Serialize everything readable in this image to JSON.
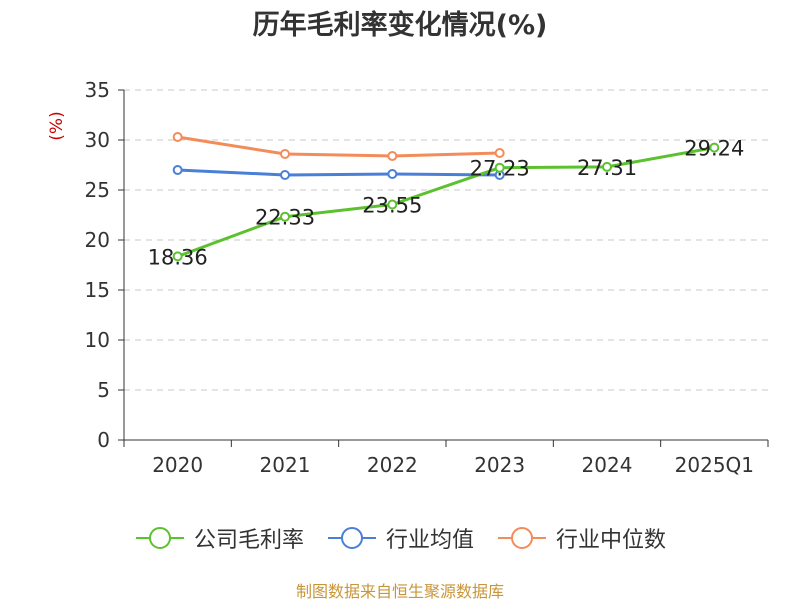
{
  "chart_data": {
    "type": "line",
    "title": "历年毛利率变化情况(%)",
    "ylabel": "(%)",
    "xlabel": "",
    "categories": [
      "2020",
      "2021",
      "2022",
      "2023",
      "2024",
      "2025Q1"
    ],
    "ylim": [
      0,
      35
    ],
    "yticks": [
      0,
      5,
      10,
      15,
      20,
      25,
      30,
      35
    ],
    "grid": true,
    "legend_position": "bottom",
    "series": [
      {
        "name": "公司毛利率",
        "color": "#5cc12f",
        "values": [
          18.36,
          22.33,
          23.55,
          27.23,
          27.31,
          29.24
        ],
        "data_labels": [
          "18.36",
          "22.33",
          "23.55",
          "27.23",
          "27.31",
          "29.24"
        ]
      },
      {
        "name": "行业均值",
        "color": "#4a7fd8",
        "values": [
          27.0,
          26.5,
          26.6,
          26.5,
          null,
          null
        ]
      },
      {
        "name": "行业中位数",
        "color": "#f38c58",
        "values": [
          30.3,
          28.6,
          28.4,
          28.7,
          null,
          null
        ]
      }
    ]
  },
  "source": "制图数据来自恒生聚源数据库"
}
